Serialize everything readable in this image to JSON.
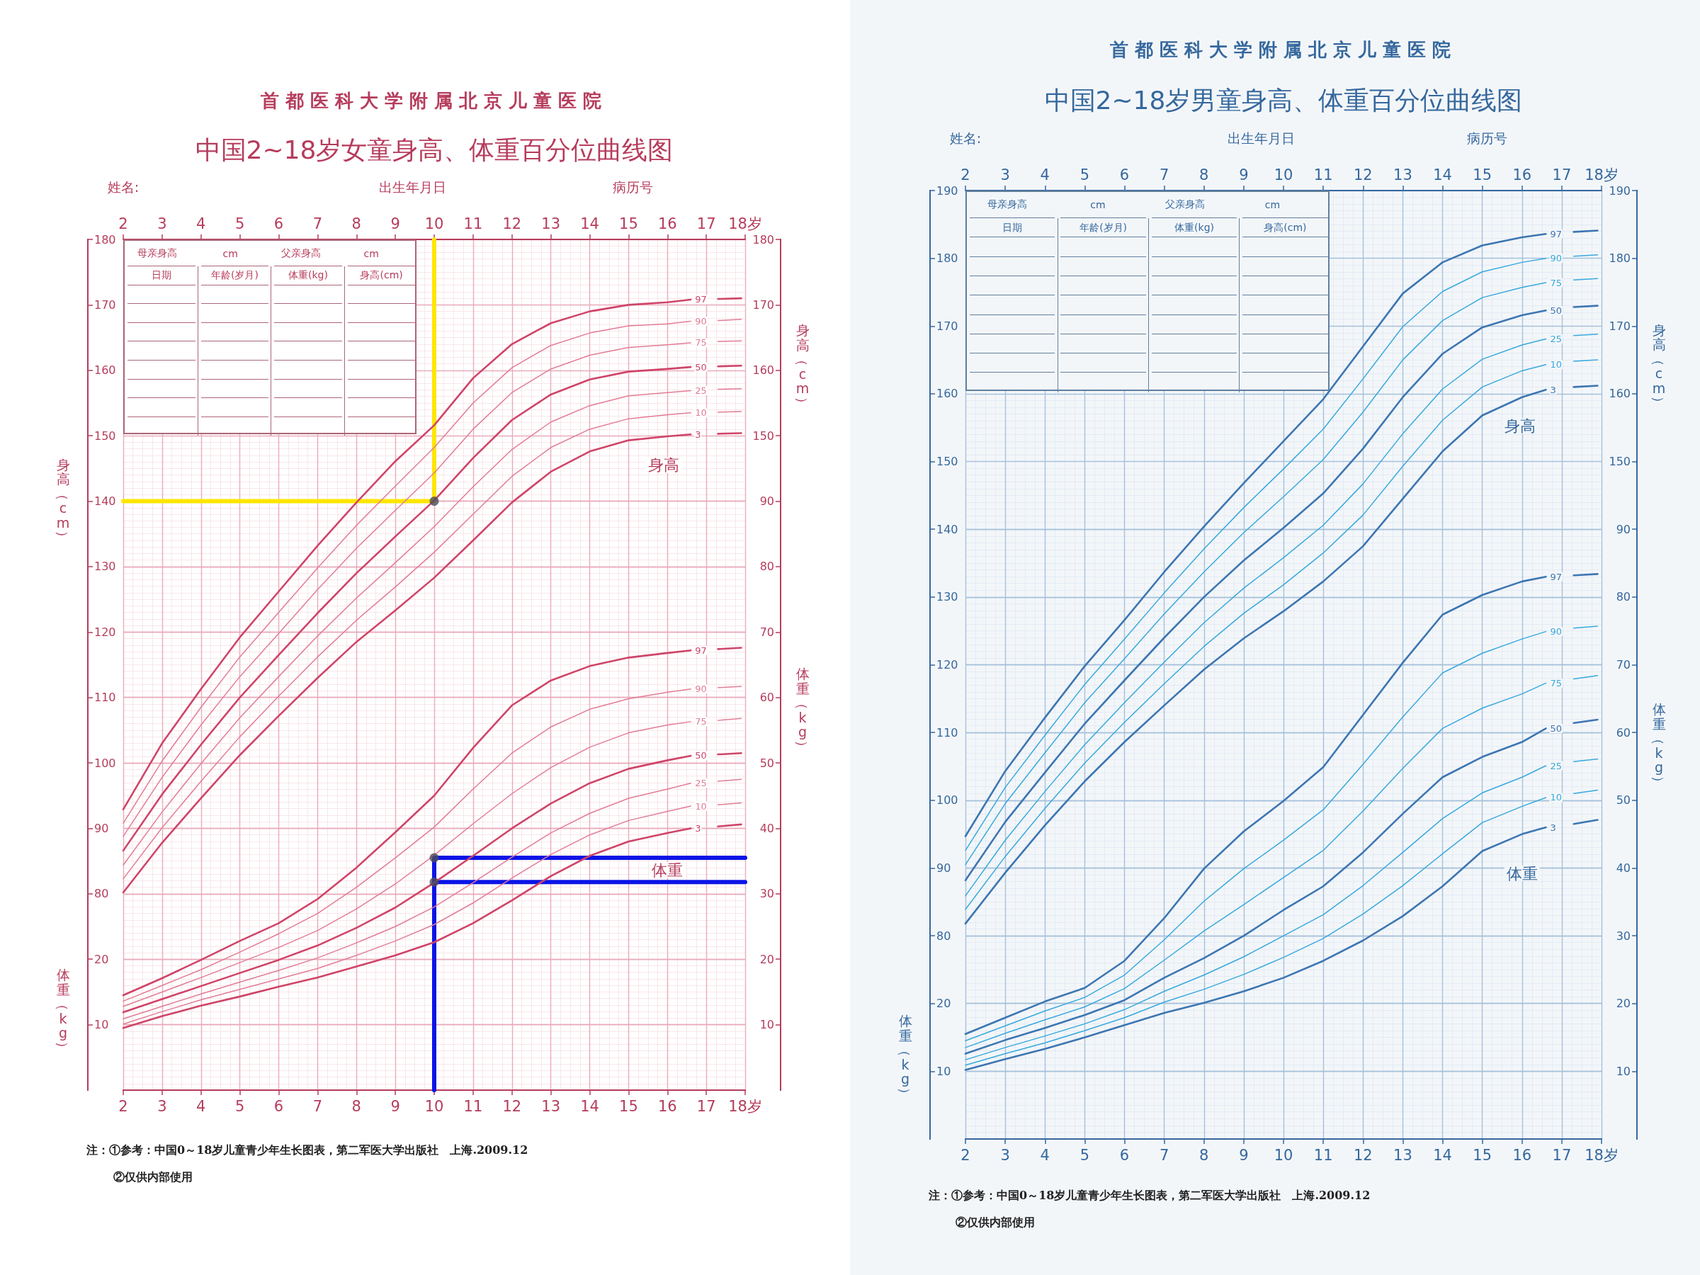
{
  "chart_data": [
    {
      "type": "line",
      "title": "中国2~18岁女童身高、体重百分位曲线图",
      "subtitle": "首都医科大学附属北京儿童医院",
      "ylabel": "身高（cm）",
      "y2label": "体重（kg）",
      "x": [
        2,
        3,
        4,
        5,
        6,
        7,
        8,
        9,
        10,
        11,
        12,
        13,
        14,
        15,
        16,
        16.6,
        17,
        17.3,
        17.9
      ],
      "xlim": [
        2,
        18
      ],
      "xticks": [
        2,
        3,
        4,
        5,
        6,
        7,
        8,
        9,
        10,
        11,
        12,
        13,
        14,
        15,
        16,
        17,
        {
          "value": 18,
          "label": "18岁"
        }
      ],
      "x2lim": [
        2,
        18
      ],
      "x2ticks": [
        2,
        3,
        4,
        5,
        6,
        7,
        8,
        9,
        10,
        11,
        12,
        13,
        14,
        15,
        16,
        17,
        {
          "value": 18,
          "label": "18岁"
        }
      ],
      "ylim": [
        50,
        180
      ],
      "yticks": [
        80,
        90,
        100,
        110,
        120,
        130,
        140,
        150,
        160,
        170,
        180
      ],
      "y2lim": [
        0,
        130
      ],
      "y2ticks": [
        10,
        20,
        30,
        40,
        50,
        60,
        70,
        80,
        90
      ],
      "grid": true,
      "marker": "none",
      "series": [
        {
          "name": "97",
          "color": "#cf4468",
          "values": [
            92.9,
            103.0,
            111.3,
            119.2,
            126.2,
            133.2,
            139.8,
            146.1,
            151.6,
            158.8,
            164.0,
            167.2,
            169.0,
            170.0,
            170.4,
            170.8,
            null,
            170.9,
            171.0
          ]
        },
        {
          "name": "90",
          "color": "#e27c95",
          "values": [
            90.8,
            100.3,
            108.5,
            116.2,
            123.0,
            129.8,
            136.3,
            142.3,
            148.2,
            155.0,
            160.4,
            163.8,
            165.7,
            166.8,
            167.1,
            167.5,
            null,
            167.6,
            167.8
          ]
        },
        {
          "name": "75",
          "color": "#e27c95",
          "values": [
            88.8,
            97.8,
            105.8,
            113.2,
            119.8,
            126.5,
            132.8,
            138.6,
            144.3,
            151.0,
            156.6,
            160.2,
            162.3,
            163.5,
            163.9,
            164.2,
            null,
            164.4,
            164.5
          ]
        },
        {
          "name": "50",
          "color": "#cf4468",
          "values": [
            86.6,
            95.2,
            102.8,
            110.0,
            116.5,
            122.9,
            129.0,
            134.6,
            140.1,
            146.6,
            152.4,
            156.3,
            158.6,
            159.8,
            160.2,
            160.5,
            null,
            160.6,
            160.7
          ]
        },
        {
          "name": "25",
          "color": "#e27c95",
          "values": [
            84.4,
            92.5,
            99.9,
            106.9,
            113.2,
            119.4,
            125.2,
            130.6,
            136.1,
            142.2,
            147.9,
            152.1,
            154.6,
            156.1,
            156.6,
            156.9,
            null,
            157.1,
            157.2
          ]
        },
        {
          "name": "10",
          "color": "#e27c95",
          "values": [
            82.3,
            90.1,
            97.2,
            104.0,
            110.2,
            116.2,
            121.8,
            126.9,
            132.2,
            138.0,
            143.8,
            148.2,
            151.0,
            152.6,
            153.2,
            153.5,
            null,
            153.6,
            153.7
          ]
        },
        {
          "name": "3",
          "color": "#cf4468",
          "values": [
            80.2,
            87.8,
            94.6,
            101.2,
            107.2,
            113.0,
            118.5,
            123.3,
            128.3,
            134.0,
            139.8,
            144.5,
            147.6,
            149.3,
            149.9,
            150.2,
            null,
            150.3,
            150.4
          ]
        },
        {
          "color": "#ffe600",
          "x": [
            2,
            10,
            10
          ],
          "values": [
            140,
            140,
            180
          ]
        },
        {
          "type": "scatter",
          "color": "#4b4b5e",
          "marker": "circle",
          "x": [
            10
          ],
          "values": [
            140
          ]
        }
      ],
      "annotations": [
        "姓名:",
        "出生年月日",
        "病历号",
        "母亲身高",
        "cm",
        "父亲身高",
        "cm",
        "日期",
        "年龄(岁月)",
        "体重(kg)",
        "身高(cm)",
        "身高",
        "注：①参考：中国0～18岁儿童青少年生长图表，第二军医大学出版社　上海.2009.12",
        "②仅供内部使用"
      ]
    },
    {
      "type": "line",
      "ylabel": "体重（kg）",
      "y2label": "身高（cm）",
      "x": [
        2,
        3,
        4,
        5,
        6,
        7,
        8,
        9,
        10,
        11,
        12,
        13,
        14,
        15,
        16,
        16.6,
        17,
        17.3,
        17.9
      ],
      "xlim": [
        2,
        18
      ],
      "ylim": [
        0,
        130
      ],
      "yticks": [
        10,
        20
      ],
      "y2lim": [
        50,
        180
      ],
      "y2ticks": [
        150,
        160,
        170,
        180
      ],
      "tick_labels": "y",
      "grid": "y",
      "marker": "none",
      "series": [
        {
          "name": "97",
          "color": "#cf4468",
          "values": [
            14.5,
            17.1,
            19.9,
            22.8,
            25.5,
            29.2,
            34.0,
            39.4,
            45.0,
            52.3,
            58.8,
            62.6,
            64.8,
            66.1,
            66.8,
            67.2,
            null,
            67.4,
            67.6
          ]
        },
        {
          "name": "90",
          "color": "#e27c95",
          "values": [
            13.6,
            16.0,
            18.4,
            21.1,
            23.9,
            27.0,
            31.0,
            35.5,
            40.2,
            46.0,
            51.5,
            55.5,
            58.2,
            59.8,
            60.8,
            61.3,
            null,
            61.5,
            61.7
          ]
        },
        {
          "name": "75",
          "color": "#e27c95",
          "values": [
            12.8,
            15.0,
            17.2,
            19.5,
            21.8,
            24.4,
            27.7,
            31.5,
            35.9,
            40.7,
            45.3,
            49.3,
            52.4,
            54.6,
            55.8,
            56.3,
            null,
            56.5,
            56.8
          ]
        },
        {
          "name": "50",
          "color": "#cf4468",
          "values": [
            11.9,
            13.9,
            15.9,
            17.9,
            19.9,
            22.1,
            24.8,
            27.9,
            31.7,
            35.8,
            40.0,
            43.8,
            46.9,
            49.1,
            50.4,
            51.1,
            null,
            51.3,
            51.5
          ]
        },
        {
          "name": "25",
          "color": "#e27c95",
          "values": [
            10.9,
            12.8,
            14.7,
            16.5,
            18.3,
            20.2,
            22.5,
            25.0,
            28.0,
            31.7,
            35.6,
            39.3,
            42.3,
            44.6,
            46.0,
            46.9,
            null,
            47.2,
            47.5
          ]
        },
        {
          "name": "10",
          "color": "#e27c95",
          "values": [
            10.1,
            12.0,
            13.8,
            15.4,
            17.0,
            18.6,
            20.6,
            22.8,
            25.3,
            28.6,
            32.4,
            36.0,
            39.0,
            41.2,
            42.6,
            43.4,
            null,
            43.6,
            43.9
          ]
        },
        {
          "name": "3",
          "color": "#cf4468",
          "values": [
            9.5,
            11.3,
            12.9,
            14.3,
            15.8,
            17.2,
            18.9,
            20.6,
            22.6,
            25.5,
            29.0,
            32.7,
            35.8,
            38.0,
            39.3,
            40.0,
            null,
            40.3,
            40.6
          ]
        },
        {
          "color": "#0a14e6",
          "x": [
            10,
            10,
            18
          ],
          "values": [
            0,
            35.5,
            35.5
          ]
        },
        {
          "color": "#0a14e6",
          "x": [
            10,
            18
          ],
          "values": [
            31.8,
            31.8
          ]
        },
        {
          "type": "scatter",
          "color": "#4b4b5e",
          "marker": "circle",
          "x": [
            10,
            10
          ],
          "values": [
            35.5,
            31.8
          ]
        }
      ],
      "annotations": [
        "体重"
      ]
    },
    {
      "type": "line",
      "title": "中国2~18岁男童身高、体重百分位曲线图",
      "subtitle": "首都医科大学附属北京儿童医院",
      "y2label": "体重（kg）",
      "x": [
        2,
        3,
        4,
        5,
        6,
        7,
        8,
        9,
        10,
        11,
        12,
        13,
        14,
        15,
        16,
        16.6,
        17,
        17.3,
        17.9
      ],
      "xlim": [
        2,
        18
      ],
      "xticks": [
        2,
        3,
        4,
        5,
        6,
        7,
        8,
        9,
        10,
        11,
        12,
        13,
        14,
        15,
        16,
        17,
        {
          "value": 18,
          "label": "18岁"
        }
      ],
      "x2lim": [
        2,
        18
      ],
      "x2ticks": [
        2,
        3,
        4,
        5,
        6,
        7,
        8,
        9,
        10,
        11,
        12,
        13,
        14,
        15,
        16,
        17,
        {
          "value": 18,
          "label": "18岁"
        }
      ],
      "ylim": [
        50,
        190
      ],
      "yticks": [
        80,
        90,
        100,
        110,
        120,
        130,
        140,
        150,
        160,
        170,
        180,
        190
      ],
      "y2lim": [
        0,
        140
      ],
      "y2ticks": [
        10,
        20,
        30,
        40,
        50,
        60,
        70,
        80,
        90
      ],
      "grid": true,
      "marker": "none",
      "series": [
        {
          "name": "97",
          "color": "#3c76b2",
          "values": [
            94.7,
            104.3,
            112.2,
            119.8,
            126.6,
            133.7,
            140.4,
            146.8,
            153.0,
            159.2,
            167.0,
            174.8,
            179.4,
            181.9,
            183.1,
            183.6,
            null,
            183.9,
            184.1
          ]
        },
        {
          "name": "90",
          "color": "#38a9dd",
          "values": [
            92.6,
            101.9,
            109.6,
            117.1,
            123.8,
            130.6,
            137.1,
            143.2,
            148.9,
            154.8,
            162.2,
            169.9,
            175.1,
            178.0,
            179.4,
            180.0,
            null,
            180.3,
            180.5
          ]
        },
        {
          "name": "75",
          "color": "#38a9dd",
          "values": [
            90.5,
            99.5,
            107.0,
            114.4,
            120.9,
            127.5,
            133.7,
            139.5,
            144.8,
            150.3,
            157.3,
            165.0,
            170.8,
            174.2,
            175.7,
            176.4,
            null,
            176.8,
            177.0
          ]
        },
        {
          "name": "50",
          "color": "#3c76b2",
          "values": [
            88.2,
            96.8,
            104.1,
            111.3,
            117.7,
            124.0,
            130.0,
            135.4,
            140.2,
            145.3,
            151.9,
            159.5,
            165.9,
            169.8,
            171.6,
            172.3,
            null,
            172.8,
            173.0
          ]
        },
        {
          "name": "25",
          "color": "#38a9dd",
          "values": [
            85.9,
            94.1,
            101.3,
            108.2,
            114.4,
            120.4,
            126.2,
            131.3,
            135.8,
            140.6,
            146.7,
            154.1,
            160.7,
            165.1,
            167.2,
            168.1,
            null,
            168.6,
            168.8
          ]
        },
        {
          "name": "10",
          "color": "#38a9dd",
          "values": [
            83.9,
            91.7,
            98.8,
            105.5,
            111.5,
            117.2,
            122.7,
            127.6,
            131.8,
            136.5,
            142.1,
            149.3,
            156.1,
            161.0,
            163.4,
            164.3,
            null,
            164.8,
            165.0
          ]
        },
        {
          "name": "3",
          "color": "#3c76b2",
          "values": [
            81.8,
            89.3,
            96.3,
            102.8,
            108.6,
            114.0,
            119.3,
            123.9,
            127.9,
            132.3,
            137.5,
            144.5,
            151.5,
            156.8,
            159.5,
            160.6,
            null,
            161.0,
            161.2
          ]
        }
      ],
      "annotations": [
        "姓名:",
        "出生年月日",
        "病历号",
        "母亲身高",
        "cm",
        "父亲身高",
        "cm",
        "日期",
        "年龄(岁月)",
        "体重(kg)",
        "身高(cm)",
        "身高",
        "注：①参考：中国0～18岁儿童青少年生长图表，第二军医大学出版社　上海.2009.12",
        "②仅供内部使用"
      ]
    },
    {
      "type": "line",
      "ylabel": "体重（kg）",
      "y2label": "身高（cm）",
      "x": [
        2,
        3,
        4,
        5,
        6,
        7,
        8,
        9,
        10,
        11,
        12,
        13,
        14,
        15,
        16,
        16.6,
        17,
        17.3,
        17.9
      ],
      "xlim": [
        2,
        18
      ],
      "ylim": [
        0,
        140
      ],
      "yticks": [
        10,
        20
      ],
      "y2lim": [
        50,
        190
      ],
      "y2ticks": [
        150,
        160,
        170,
        180,
        190
      ],
      "tick_labels": "y",
      "grid": "y",
      "marker": "none",
      "series": [
        {
          "name": "97",
          "color": "#3c76b2",
          "values": [
            15.5,
            17.9,
            20.3,
            22.3,
            26.3,
            32.6,
            39.9,
            45.4,
            49.9,
            54.9,
            62.6,
            70.3,
            77.4,
            80.3,
            82.3,
            83.0,
            null,
            83.2,
            83.4
          ]
        },
        {
          "name": "90",
          "color": "#38a9dd",
          "values": [
            14.5,
            16.7,
            18.9,
            20.9,
            24.2,
            29.4,
            35.1,
            39.9,
            44.1,
            48.6,
            55.3,
            62.3,
            68.8,
            71.7,
            73.8,
            74.9,
            null,
            75.4,
            75.7
          ]
        },
        {
          "name": "75",
          "color": "#38a9dd",
          "values": [
            13.5,
            15.6,
            17.6,
            19.5,
            22.2,
            26.4,
            30.7,
            34.6,
            38.6,
            42.6,
            48.4,
            54.7,
            60.6,
            63.6,
            65.7,
            67.3,
            null,
            67.9,
            68.4
          ]
        },
        {
          "name": "50",
          "color": "#3c76b2",
          "values": [
            12.6,
            14.6,
            16.4,
            18.3,
            20.5,
            23.8,
            26.7,
            30.0,
            33.8,
            37.3,
            42.3,
            48.0,
            53.4,
            56.4,
            58.6,
            60.6,
            null,
            61.4,
            61.9
          ]
        },
        {
          "name": "25",
          "color": "#38a9dd",
          "values": [
            11.7,
            13.5,
            15.2,
            17.0,
            19.1,
            21.8,
            24.2,
            26.9,
            30.0,
            33.1,
            37.4,
            42.3,
            47.3,
            51.1,
            53.4,
            55.1,
            null,
            55.7,
            56.1
          ]
        },
        {
          "name": "10",
          "color": "#38a9dd",
          "values": [
            10.9,
            12.6,
            14.2,
            16.0,
            17.9,
            20.2,
            22.1,
            24.3,
            26.8,
            29.6,
            33.2,
            37.4,
            42.1,
            46.7,
            49.1,
            50.4,
            null,
            51.0,
            51.5
          ]
        },
        {
          "name": "3",
          "color": "#3c76b2",
          "values": [
            10.2,
            11.8,
            13.3,
            15.0,
            16.8,
            18.6,
            20.1,
            21.8,
            23.8,
            26.3,
            29.3,
            32.9,
            37.3,
            42.5,
            45.0,
            46.0,
            null,
            46.5,
            47.1
          ]
        }
      ],
      "annotations": [
        "体重"
      ]
    }
  ]
}
